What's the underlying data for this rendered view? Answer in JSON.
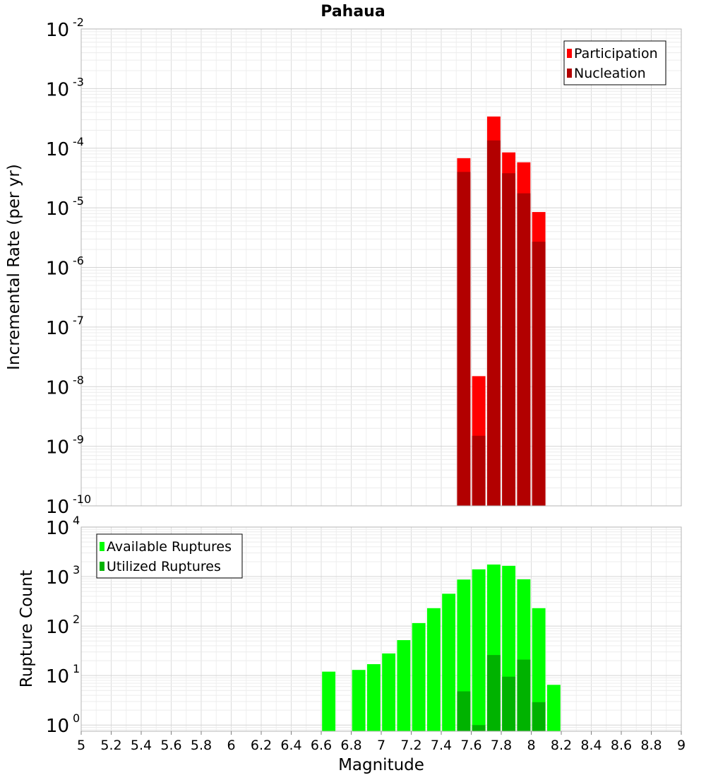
{
  "chart_data": [
    {
      "type": "bar",
      "title": "Pahaua",
      "ylabel": "Incremental Rate (per yr)",
      "xlabel": "",
      "y_scale": "log",
      "ylim_exponents": [
        -10,
        -2
      ],
      "xlim": [
        5,
        9
      ],
      "bin_width": 0.1,
      "grid": true,
      "legend_position": "top-right",
      "y_ticks": [
        {
          "base": "10",
          "exp": "-2"
        },
        {
          "base": "10",
          "exp": "-3"
        },
        {
          "base": "10",
          "exp": "-4"
        },
        {
          "base": "10",
          "exp": "-5"
        },
        {
          "base": "10",
          "exp": "-6"
        },
        {
          "base": "10",
          "exp": "-7"
        },
        {
          "base": "10",
          "exp": "-8"
        },
        {
          "base": "10",
          "exp": "-9"
        },
        {
          "base": "10",
          "exp": "-10"
        }
      ],
      "series": [
        {
          "name": "Participation",
          "color": "#ff0000",
          "x": [
            7.55,
            7.65,
            7.75,
            7.85,
            7.95,
            8.05
          ],
          "values": [
            6.8e-05,
            1.5e-08,
            0.00034,
            8.5e-05,
            5.8e-05,
            8.5e-06
          ]
        },
        {
          "name": "Nucleation",
          "color": "#b20000",
          "x": [
            7.55,
            7.65,
            7.75,
            7.85,
            7.95,
            8.05
          ],
          "values": [
            4e-05,
            1.5e-09,
            0.000135,
            3.8e-05,
            1.75e-05,
            2.7e-06
          ]
        }
      ]
    },
    {
      "type": "bar",
      "title": "",
      "ylabel": "Rupture Count",
      "xlabel": "Magnitude",
      "y_scale": "log",
      "ylim": [
        0.75,
        10000
      ],
      "xlim": [
        5,
        9
      ],
      "bin_width": 0.1,
      "grid": true,
      "legend_position": "top-left",
      "x_ticks": [
        "5",
        "5.2",
        "5.4",
        "5.6",
        "5.8",
        "6",
        "6.2",
        "6.4",
        "6.6",
        "6.8",
        "7",
        "7.2",
        "7.4",
        "7.6",
        "7.8",
        "8",
        "8.2",
        "8.4",
        "8.6",
        "8.8",
        "9"
      ],
      "y_ticks": [
        {
          "base": "10",
          "exp": "4"
        },
        {
          "base": "10",
          "exp": "3"
        },
        {
          "base": "10",
          "exp": "2"
        },
        {
          "base": "10",
          "exp": "1"
        },
        {
          "base": "10",
          "exp": "0"
        }
      ],
      "series": [
        {
          "name": "Available Ruptures",
          "color": "#00ff00",
          "x": [
            6.65,
            6.85,
            6.95,
            7.05,
            7.15,
            7.25,
            7.35,
            7.45,
            7.55,
            7.65,
            7.75,
            7.85,
            7.95,
            8.05,
            8.15
          ],
          "values": [
            12,
            13,
            17,
            28,
            52,
            115,
            230,
            450,
            870,
            1400,
            1750,
            1650,
            880,
            230,
            6.5
          ]
        },
        {
          "name": "Utilized Ruptures",
          "color": "#00b200",
          "x": [
            7.55,
            7.65,
            7.75,
            7.85,
            7.95,
            8.05
          ],
          "values": [
            4.8,
            1,
            26,
            9.5,
            21,
            2.9
          ]
        }
      ]
    }
  ]
}
